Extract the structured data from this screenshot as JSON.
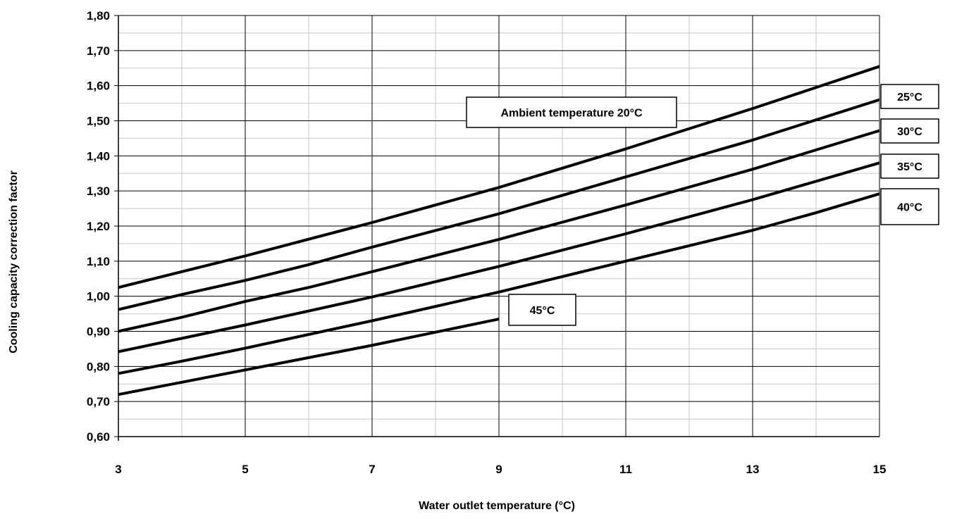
{
  "chart_data": {
    "type": "line",
    "xlabel": "Water outlet temperature (°C)",
    "ylabel": "Cooling capacity correction factor",
    "xlim": [
      3,
      15
    ],
    "ylim": [
      0.6,
      1.8
    ],
    "x_ticks": [
      3,
      5,
      7,
      9,
      11,
      13,
      15
    ],
    "x_tick_labels": [
      "3",
      "5",
      "7",
      "9",
      "11",
      "13",
      "15"
    ],
    "y_ticks": [
      0.6,
      0.7,
      0.8,
      0.9,
      1.0,
      1.1,
      1.2,
      1.3,
      1.4,
      1.5,
      1.6,
      1.7,
      1.8
    ],
    "y_tick_labels": [
      "0,60",
      "0,70",
      "0,80",
      "0,90",
      "1,00",
      "1,10",
      "1,20",
      "1,30",
      "1,40",
      "1,50",
      "1,60",
      "1,70",
      "1,80"
    ],
    "grid": true,
    "minor_grid": true,
    "legend": "none",
    "series": [
      {
        "name": "Ambient temperature 20°C",
        "x": [
          3,
          5,
          7,
          9,
          11,
          13,
          15
        ],
        "y": [
          1.025,
          1.115,
          1.21,
          1.31,
          1.42,
          1.535,
          1.655
        ]
      },
      {
        "name": "25°C",
        "x": [
          3,
          4,
          5,
          6,
          7,
          9,
          11,
          13,
          15
        ],
        "y": [
          0.962,
          1.005,
          1.045,
          1.09,
          1.14,
          1.235,
          1.34,
          1.445,
          1.56
        ]
      },
      {
        "name": "30°C",
        "x": [
          3,
          4,
          5,
          6,
          7,
          9,
          11,
          13,
          15
        ],
        "y": [
          0.9,
          0.94,
          0.985,
          1.025,
          1.07,
          1.162,
          1.26,
          1.362,
          1.472
        ]
      },
      {
        "name": "35°C",
        "x": [
          3,
          5,
          7,
          9,
          11,
          13,
          15
        ],
        "y": [
          0.842,
          0.918,
          0.998,
          1.085,
          1.178,
          1.275,
          1.38
        ]
      },
      {
        "name": "40°C",
        "x": [
          3,
          4,
          5,
          7,
          9,
          11,
          13,
          14,
          15
        ],
        "y": [
          0.78,
          0.815,
          0.852,
          0.93,
          1.012,
          1.1,
          1.188,
          1.238,
          1.292
        ]
      },
      {
        "name": "45°C",
        "x": [
          3,
          4,
          5,
          7,
          9
        ],
        "y": [
          0.72,
          0.755,
          0.79,
          0.86,
          0.935
        ]
      }
    ]
  }
}
